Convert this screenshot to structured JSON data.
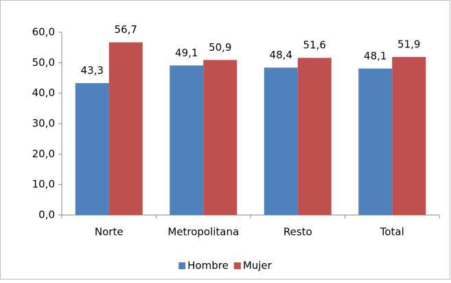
{
  "chart_data": {
    "type": "bar",
    "categories": [
      "Norte",
      "Metropolitana",
      "Resto",
      "Total"
    ],
    "series": [
      {
        "name": "Hombre",
        "color": "#4f81bd",
        "values": [
          43.3,
          49.1,
          48.4,
          48.1
        ],
        "value_labels": [
          "43,3",
          "49,1",
          "48,4",
          "48,1"
        ]
      },
      {
        "name": "Mujer",
        "color": "#c0504d",
        "values": [
          56.7,
          50.9,
          51.6,
          51.9
        ],
        "value_labels": [
          "56,7",
          "50,9",
          "51,6",
          "51,9"
        ]
      }
    ],
    "ylim": [
      0,
      60
    ],
    "yticks": [
      {
        "value": 0,
        "label": "0,0"
      },
      {
        "value": 10,
        "label": "10,0"
      },
      {
        "value": 20,
        "label": "20,0"
      },
      {
        "value": 30,
        "label": "30,0"
      },
      {
        "value": 40,
        "label": "40,0"
      },
      {
        "value": 50,
        "label": "50,0"
      },
      {
        "value": 60,
        "label": "60,0"
      }
    ],
    "grid": false,
    "legend": "bottom"
  }
}
